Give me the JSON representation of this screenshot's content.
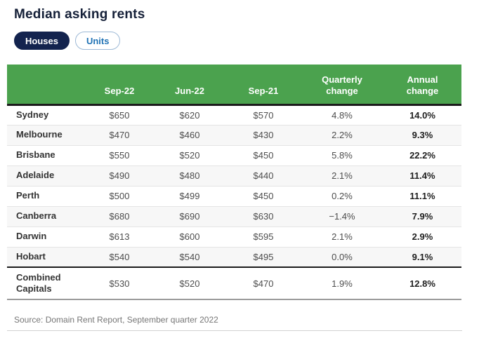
{
  "title": "Median asking rents",
  "tabs": {
    "houses": "Houses",
    "units": "Units",
    "active": "Houses"
  },
  "chart_data": {
    "type": "table",
    "title": "Median asking rents",
    "columns": [
      "",
      "Sep-22",
      "Jun-22",
      "Sep-21",
      "Quarterly change",
      "Annual change"
    ],
    "rows": [
      [
        "Sydney",
        "$650",
        "$620",
        "$570",
        "4.8%",
        "14.0%"
      ],
      [
        "Melbourne",
        "$470",
        "$460",
        "$430",
        "2.2%",
        "9.3%"
      ],
      [
        "Brisbane",
        "$550",
        "$520",
        "$450",
        "5.8%",
        "22.2%"
      ],
      [
        "Adelaide",
        "$490",
        "$480",
        "$440",
        "2.1%",
        "11.4%"
      ],
      [
        "Perth",
        "$500",
        "$499",
        "$450",
        "0.2%",
        "11.1%"
      ],
      [
        "Canberra",
        "$680",
        "$690",
        "$630",
        "−1.4%",
        "7.9%"
      ],
      [
        "Darwin",
        "$613",
        "$600",
        "$595",
        "2.1%",
        "2.9%"
      ],
      [
        "Hobart",
        "$540",
        "$540",
        "$495",
        "0.0%",
        "9.1%"
      ],
      [
        "Combined Capitals",
        "$530",
        "$520",
        "$470",
        "1.9%",
        "12.8%"
      ]
    ]
  },
  "source": "Source: Domain Rent Report, September quarter 2022",
  "colors": {
    "header_green": "#4BA24E",
    "brand_navy": "#13234E",
    "tab_blue": "#2173B5"
  }
}
